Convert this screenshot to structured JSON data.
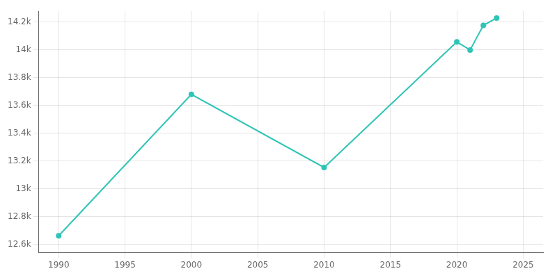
{
  "chart_data": {
    "type": "line",
    "x": [
      1990,
      2000,
      2010,
      2020,
      2021,
      2022,
      2023
    ],
    "values": [
      12662,
      13680,
      13154,
      14058,
      14000,
      14177,
      14230
    ],
    "color": "#2ec4b6",
    "marker": "circle",
    "xlim": [
      1988.5,
      2026.5
    ],
    "ylim": [
      12540,
      14280
    ],
    "xticks": [
      1990,
      1995,
      2000,
      2005,
      2010,
      2015,
      2020,
      2025
    ],
    "yticks": [
      {
        "value": 12600,
        "label": "12.6k"
      },
      {
        "value": 12800,
        "label": "12.8k"
      },
      {
        "value": 13000,
        "label": "13k"
      },
      {
        "value": 13200,
        "label": "13.2k"
      },
      {
        "value": 13400,
        "label": "13.4k"
      },
      {
        "value": 13600,
        "label": "13.6k"
      },
      {
        "value": 13800,
        "label": "13.8k"
      },
      {
        "value": 14000,
        "label": "14k"
      },
      {
        "value": 14200,
        "label": "14.2k"
      }
    ],
    "grid": true
  }
}
